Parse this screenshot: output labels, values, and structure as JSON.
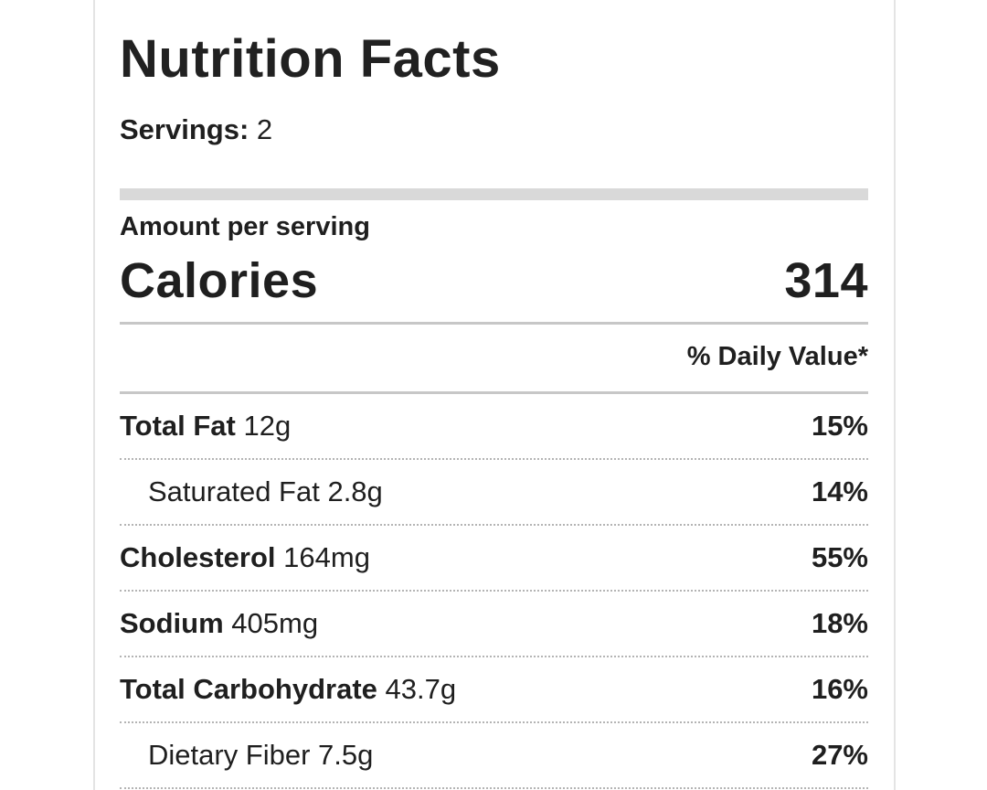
{
  "label": {
    "title": "Nutrition Facts",
    "servings_label": "Servings:",
    "servings_value": "2",
    "amount_per_serving": "Amount per serving",
    "calories_label": "Calories",
    "calories_value": "314",
    "daily_value_header": "% Daily Value*",
    "rows": [
      {
        "name": "Total Fat",
        "amount": "12g",
        "daily_value": "15%",
        "emphasis": true,
        "indent": false
      },
      {
        "name": "Saturated Fat",
        "amount": "2.8g",
        "daily_value": "14%",
        "emphasis": false,
        "indent": true
      },
      {
        "name": "Cholesterol",
        "amount": "164mg",
        "daily_value": "55%",
        "emphasis": true,
        "indent": false
      },
      {
        "name": "Sodium",
        "amount": "405mg",
        "daily_value": "18%",
        "emphasis": true,
        "indent": false
      },
      {
        "name": "Total Carbohydrate",
        "amount": "43.7g",
        "daily_value": "16%",
        "emphasis": true,
        "indent": false
      },
      {
        "name": "Dietary Fiber",
        "amount": "7.5g",
        "daily_value": "27%",
        "emphasis": false,
        "indent": true
      }
    ]
  },
  "colors": {
    "text": "#212121",
    "card_border": "#e4e4e4",
    "thick_bar": "#d9d9d9",
    "solid_divider": "#c7c7c7",
    "dotted_divider": "#b4b4b4",
    "background": "#ffffff"
  }
}
